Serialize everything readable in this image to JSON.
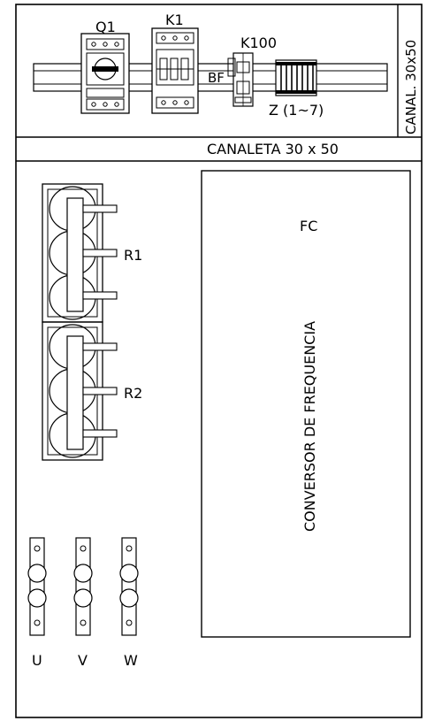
{
  "labels": {
    "q1": "Q1",
    "k1": "K1",
    "k100": "K100",
    "bf": "BF",
    "z": "Z (1~7)",
    "canal_side": "CANAL. 30x50",
    "canaleta": "CANALETA 30 x 50",
    "r1": "R1",
    "r2": "R2",
    "fc": "FC",
    "conversor": "CONVERSOR DE FREQUENCIA",
    "u": "U",
    "v": "V",
    "w": "W"
  }
}
